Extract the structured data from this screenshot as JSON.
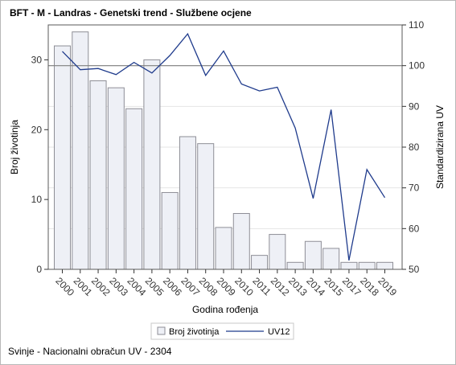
{
  "title": "BFT - M - Landras - Genetski trend - Službene ocjene",
  "footnote": "Svinje - Nacionalni obračun UV - 2304",
  "chart_data": {
    "type": "bar",
    "categories": [
      "2000",
      "2001",
      "2002",
      "2003",
      "2004",
      "2005",
      "2006",
      "2007",
      "2008",
      "2009",
      "2010",
      "2011",
      "2012",
      "2013",
      "2014",
      "2015",
      "2017",
      "2018",
      "2019"
    ],
    "series": [
      {
        "name": "Broj životinja",
        "type": "bar",
        "axis": "left",
        "values": [
          32,
          34,
          27,
          26,
          23,
          30,
          11,
          19,
          18,
          6,
          8,
          2,
          5,
          1,
          4,
          3,
          1,
          1,
          1
        ]
      },
      {
        "name": "UV12",
        "type": "line",
        "axis": "right",
        "values": [
          103.5,
          99,
          99.3,
          97.8,
          100.8,
          98.2,
          102.5,
          107.8,
          97.6,
          103.6,
          95.5,
          93.8,
          94.7,
          84.7,
          67.4,
          89.2,
          52.2,
          74.5,
          67.6
        ]
      }
    ],
    "xlabel": "Godina rođenja",
    "ylabel": "Broj životinja",
    "y2label": "Standardizirana UV",
    "ylim": [
      0,
      35
    ],
    "yticks": [
      0,
      10,
      20,
      30
    ],
    "y2lim": [
      50,
      110
    ],
    "y2ticks": [
      50,
      60,
      70,
      80,
      90,
      100,
      110
    ],
    "reference_line_y2": 100,
    "grid": true,
    "legend": "bottom-center",
    "colors": {
      "bar_fill": "#eef0f6",
      "bar_stroke": "#8e8e96",
      "line": "#1f3b8c",
      "grid": "#e4e4e4",
      "refline": "#7f7f7f"
    }
  }
}
